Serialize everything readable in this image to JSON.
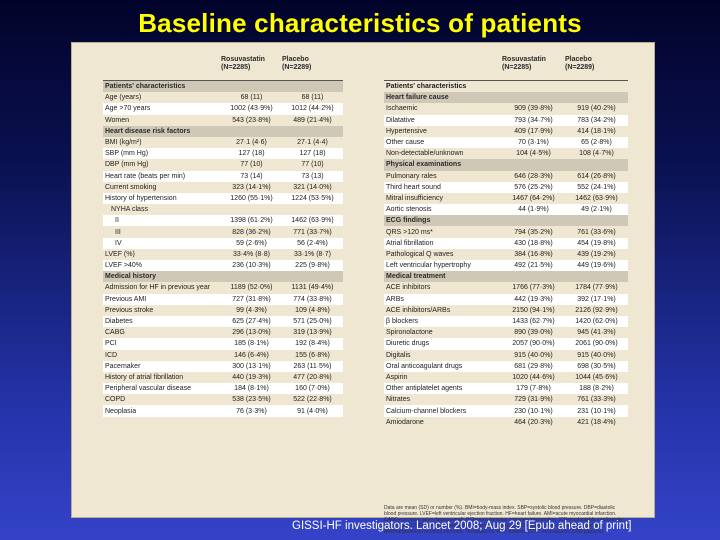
{
  "slide": {
    "title": "Baseline characteristics of patients",
    "citation": "GISSI-HF investigators. Lancet 2008; Aug 29 [Epub ahead of print]"
  },
  "table": {
    "header_rosuvastatin": "Rosuvastatin",
    "header_rosuvastatin_n": "(N=2285)",
    "header_placebo": "Placebo",
    "header_placebo_n": "(N=2289)",
    "left_rows": [
      {
        "label": "Patients' characteristics",
        "r": "",
        "p": "",
        "kind": "section"
      },
      {
        "label": "Age (years)",
        "r": "68 (11)",
        "p": "68 (11)",
        "kind": "plain"
      },
      {
        "label": "Age >70 years",
        "r": "1002 (43·9%)",
        "p": "1012 (44·2%)",
        "kind": "plain"
      },
      {
        "label": "Women",
        "r": "543 (23·8%)",
        "p": "489 (21·4%)",
        "kind": "plain"
      },
      {
        "label": "Heart disease risk factors",
        "r": "",
        "p": "",
        "kind": "section"
      },
      {
        "label": "BMI (kg/m²)",
        "r": "27·1 (4·6)",
        "p": "27·1 (4·4)",
        "kind": "plain"
      },
      {
        "label": "SBP (mm Hg)",
        "r": "127 (18)",
        "p": "127 (18)",
        "kind": "plain"
      },
      {
        "label": "DBP (mm Hg)",
        "r": "77 (10)",
        "p": "77 (10)",
        "kind": "plain"
      },
      {
        "label": "Heart rate (beats per min)",
        "r": "73 (14)",
        "p": "73 (13)",
        "kind": "plain"
      },
      {
        "label": "Current smoking",
        "r": "323 (14·1%)",
        "p": "321 (14·0%)",
        "kind": "plain"
      },
      {
        "label": "History of hypertension",
        "r": "1260 (55·1%)",
        "p": "1224 (53·5%)",
        "kind": "plain"
      },
      {
        "label": "NYHA class",
        "r": "",
        "p": "",
        "kind": "sub"
      },
      {
        "label": "II",
        "r": "1398 (61·2%)",
        "p": "1462 (63·9%)",
        "kind": "sub2"
      },
      {
        "label": "III",
        "r": "828 (36·2%)",
        "p": "771 (33·7%)",
        "kind": "sub2"
      },
      {
        "label": "IV",
        "r": "59 (2·6%)",
        "p": "56 (2·4%)",
        "kind": "sub2"
      },
      {
        "label": "LVEF (%)",
        "r": "33·4% (8·8)",
        "p": "33·1% (8·7)",
        "kind": "plain"
      },
      {
        "label": "LVEF >40%",
        "r": "236 (10·3%)",
        "p": "225 (9·8%)",
        "kind": "plain"
      },
      {
        "label": "Medical history",
        "r": "",
        "p": "",
        "kind": "section"
      },
      {
        "label": "Admission for HF in previous year",
        "r": "1189 (52·0%)",
        "p": "1131 (49·4%)",
        "kind": "plain"
      },
      {
        "label": "Previous AMI",
        "r": "727 (31·8%)",
        "p": "774 (33·8%)",
        "kind": "plain"
      },
      {
        "label": "Previous stroke",
        "r": "99 (4·3%)",
        "p": "109 (4·8%)",
        "kind": "plain"
      },
      {
        "label": "Diabetes",
        "r": "625 (27·4%)",
        "p": "571 (25·0%)",
        "kind": "plain"
      },
      {
        "label": "CABG",
        "r": "296 (13·0%)",
        "p": "319 (13·9%)",
        "kind": "plain"
      },
      {
        "label": "PCI",
        "r": "185 (8·1%)",
        "p": "192 (8·4%)",
        "kind": "plain"
      },
      {
        "label": "ICD",
        "r": "146 (6·4%)",
        "p": "155 (6·8%)",
        "kind": "plain"
      },
      {
        "label": "Pacemaker",
        "r": "300 (13·1%)",
        "p": "263 (11·5%)",
        "kind": "plain"
      },
      {
        "label": "History of atrial fibrillation",
        "r": "440 (19·3%)",
        "p": "477 (20·8%)",
        "kind": "plain"
      },
      {
        "label": "Peripheral vascular disease",
        "r": "184 (8·1%)",
        "p": "160 (7·0%)",
        "kind": "plain"
      },
      {
        "label": "COPD",
        "r": "538 (23·5%)",
        "p": "522 (22·8%)",
        "kind": "plain"
      },
      {
        "label": "Neoplasia",
        "r": "76 (3·3%)",
        "p": "91 (4·0%)",
        "kind": "plain"
      }
    ],
    "right_rows": [
      {
        "label": "Patients' characteristics",
        "r": "",
        "p": "",
        "kind": "plainbold"
      },
      {
        "label": "Heart failure cause",
        "r": "",
        "p": "",
        "kind": "section"
      },
      {
        "label": "Ischaemic",
        "r": "909 (39·8%)",
        "p": "919 (40·2%)",
        "kind": "plain"
      },
      {
        "label": "Dilatative",
        "r": "793 (34·7%)",
        "p": "783 (34·2%)",
        "kind": "plain"
      },
      {
        "label": "Hypertensive",
        "r": "409 (17·9%)",
        "p": "414 (18·1%)",
        "kind": "plain"
      },
      {
        "label": "Other cause",
        "r": "70 (3·1%)",
        "p": "65 (2·8%)",
        "kind": "plain"
      },
      {
        "label": "Non-detectable/unknown",
        "r": "104 (4·5%)",
        "p": "108 (4·7%)",
        "kind": "plain"
      },
      {
        "label": "Physical examinations",
        "r": "",
        "p": "",
        "kind": "section"
      },
      {
        "label": "Pulmonary rales",
        "r": "646 (28·3%)",
        "p": "614 (26·8%)",
        "kind": "plain"
      },
      {
        "label": "Third heart sound",
        "r": "576 (25·2%)",
        "p": "552 (24·1%)",
        "kind": "plain"
      },
      {
        "label": "Mitral insufficiency",
        "r": "1467 (64·2%)",
        "p": "1462 (63·9%)",
        "kind": "plain"
      },
      {
        "label": "Aortic stenosis",
        "r": "44 (1·9%)",
        "p": "49 (2·1%)",
        "kind": "plain"
      },
      {
        "label": "ECG findings",
        "r": "",
        "p": "",
        "kind": "section"
      },
      {
        "label": "QRS >120 ms*",
        "r": "794 (35·2%)",
        "p": "761 (33·6%)",
        "kind": "plain"
      },
      {
        "label": "Atrial fibrillation",
        "r": "430 (18·8%)",
        "p": "454 (19·8%)",
        "kind": "plain"
      },
      {
        "label": "Pathological Q waves",
        "r": "384 (16·8%)",
        "p": "439 (19·2%)",
        "kind": "plain"
      },
      {
        "label": "Left ventricular hypertrophy",
        "r": "492 (21·5%)",
        "p": "449 (19·6%)",
        "kind": "plain"
      },
      {
        "label": "Medical treatment",
        "r": "",
        "p": "",
        "kind": "section"
      },
      {
        "label": "ACE inhibitors",
        "r": "1766 (77·3%)",
        "p": "1784 (77·9%)",
        "kind": "plain"
      },
      {
        "label": "ARBs",
        "r": "442 (19·3%)",
        "p": "392 (17·1%)",
        "kind": "plain"
      },
      {
        "label": "ACE inhibitors/ARBs",
        "r": "2150 (94·1%)",
        "p": "2126 (92·9%)",
        "kind": "plain"
      },
      {
        "label": "β blockers",
        "r": "1433 (62·7%)",
        "p": "1420 (62·0%)",
        "kind": "plain"
      },
      {
        "label": "Spironolactone",
        "r": "890 (39·0%)",
        "p": "945 (41·3%)",
        "kind": "plain"
      },
      {
        "label": "Diuretic drugs",
        "r": "2057 (90·0%)",
        "p": "2061 (90·0%)",
        "kind": "plain"
      },
      {
        "label": "Digitalis",
        "r": "915 (40·0%)",
        "p": "915 (40·0%)",
        "kind": "plain"
      },
      {
        "label": "Oral anticoagulant drugs",
        "r": "681 (29·8%)",
        "p": "698 (30·5%)",
        "kind": "plain"
      },
      {
        "label": "Aspirin",
        "r": "1020 (44·6%)",
        "p": "1044 (45·6%)",
        "kind": "plain"
      },
      {
        "label": "Other antiplatelet agents",
        "r": "179 (7·8%)",
        "p": "188 (8·2%)",
        "kind": "plain"
      },
      {
        "label": "Nitrates",
        "r": "729 (31·9%)",
        "p": "761 (33·3%)",
        "kind": "plain"
      },
      {
        "label": "Calcium-channel blockers",
        "r": "230 (10·1%)",
        "p": "231 (10·1%)",
        "kind": "plain"
      },
      {
        "label": "Amiodarone",
        "r": "464 (20·3%)",
        "p": "421 (18·4%)",
        "kind": "plain"
      }
    ],
    "footnote": "Data are mean (SD) or number (%). BMI=body-mass index. SBP=systolic blood pressure. DBP=diastolic blood pressure. LVEF=left ventricular ejection fraction. HF=heart failure. AMI=acute myocardial infarction. CABG=coronary artery bypass graft. PCI=percutaneous coronary intervention. ICD=implantable cardioverter defibrillator. COPD=chronic obstructive pulmonary disease. ACE=angiotensin-converting enzyme. ARB=angiotensin receptor blockers. *Available for 4523 patients (2257 rosuvastatin, 2266 placebo)."
  }
}
